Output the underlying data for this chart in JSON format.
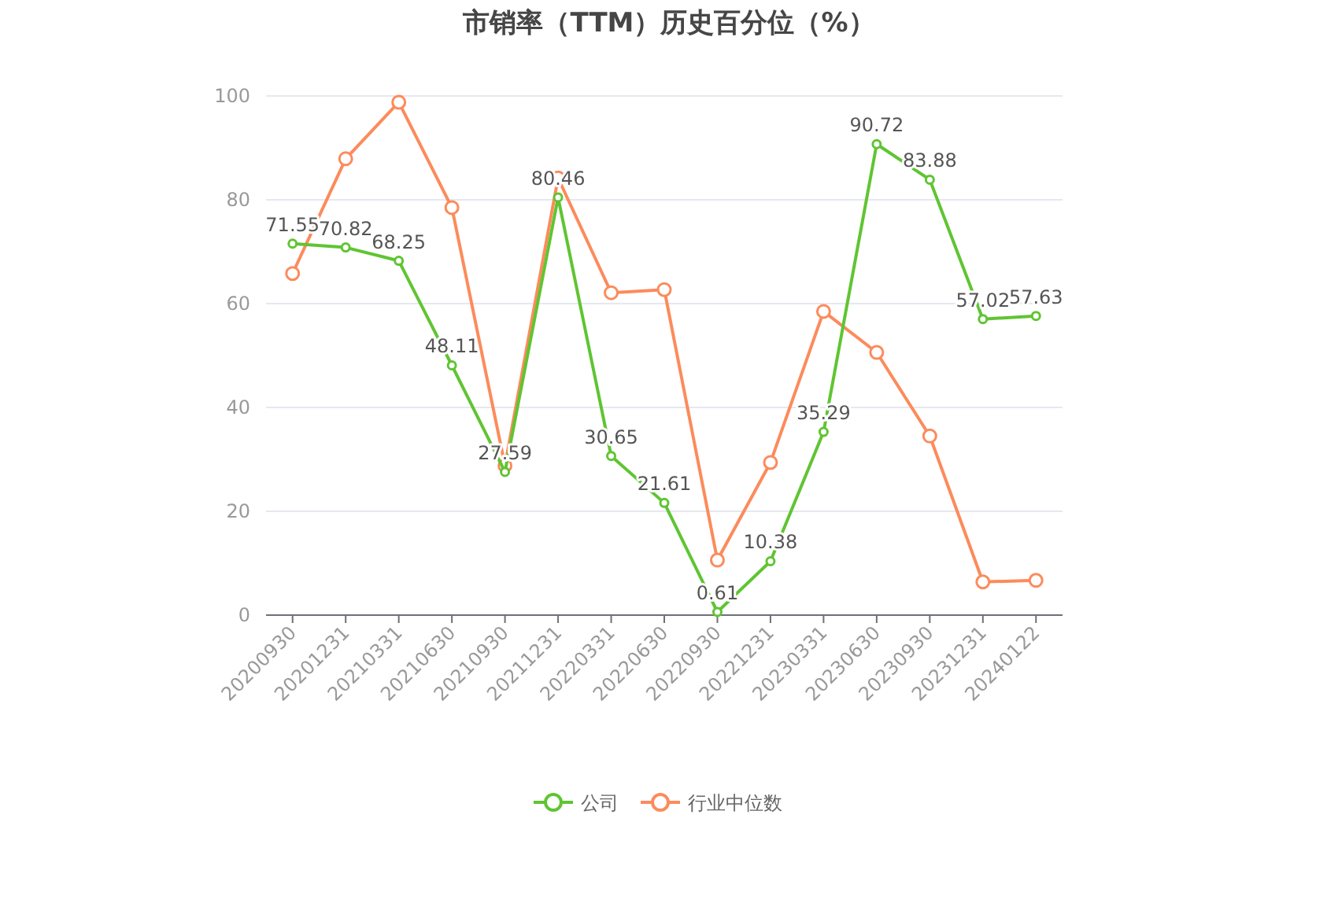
{
  "chart_data": {
    "type": "line",
    "title": "市销率（TTM）历史百分位（%）",
    "categories": [
      "20200930",
      "20201231",
      "20210331",
      "20210630",
      "20210930",
      "20211231",
      "20220331",
      "20220630",
      "20220930",
      "20221231",
      "20230331",
      "20230630",
      "20230930",
      "20231231",
      "20240122"
    ],
    "series": [
      {
        "name": "公司",
        "color": "#5fc532",
        "values": [
          71.55,
          70.82,
          68.25,
          48.11,
          27.59,
          80.46,
          30.65,
          21.61,
          0.61,
          10.38,
          35.29,
          90.72,
          83.88,
          57.02,
          57.63
        ],
        "value_labels": [
          "71.55",
          "70.82",
          "68.25",
          "48.11",
          "27.59",
          "80.46",
          "30.65",
          "21.61",
          "0.61",
          "10.38",
          "35.29",
          "90.72",
          "83.88",
          "57.02",
          "57.63"
        ]
      },
      {
        "name": "行业中位数",
        "color": "#fc8b5c",
        "values": [
          65.8,
          87.9,
          98.8,
          78.5,
          28.8,
          84.2,
          62.1,
          62.7,
          10.6,
          29.4,
          58.5,
          50.6,
          34.5,
          6.4,
          6.7
        ]
      }
    ],
    "ylim": [
      0,
      100
    ],
    "yticks": [
      0,
      20,
      40,
      60,
      80,
      100
    ],
    "grid": "y",
    "legend": "bottom",
    "marker": "circle",
    "line_style": "solid"
  }
}
